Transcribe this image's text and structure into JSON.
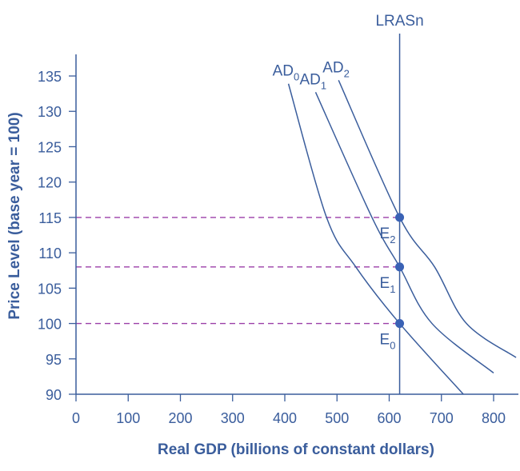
{
  "chart_data": {
    "type": "line",
    "title": "",
    "xlabel": "Real GDP (billions of constant dollars)",
    "ylabel": "Price Level (base year = 100)",
    "xlim": [
      0,
      850
    ],
    "ylim": [
      90,
      138
    ],
    "xticks": [
      0,
      100,
      200,
      300,
      400,
      500,
      600,
      700,
      800
    ],
    "yticks": [
      90,
      95,
      100,
      105,
      110,
      115,
      120,
      125,
      130,
      135
    ],
    "grid": false,
    "colors": {
      "axis": "#3a5d9c",
      "curve": "#3a5d9c",
      "dashed": "#9b3fa8",
      "point": "#3a62b5"
    },
    "vertical_line": {
      "name": "LRASn",
      "x": 620
    },
    "series": [
      {
        "name": "AD",
        "sub": "0",
        "points": [
          [
            407,
            133.9
          ],
          [
            480,
            115
          ],
          [
            536,
            108
          ],
          [
            620,
            100
          ],
          [
            742,
            90
          ]
        ]
      },
      {
        "name": "AD",
        "sub": "1",
        "points": [
          [
            459,
            132.7
          ],
          [
            567,
            115
          ],
          [
            620,
            108
          ],
          [
            682,
            100
          ],
          [
            800,
            93
          ]
        ]
      },
      {
        "name": "AD",
        "sub": "2",
        "points": [
          [
            503,
            134.4
          ],
          [
            620,
            115
          ],
          [
            687,
            108
          ],
          [
            748,
            100
          ],
          [
            843,
            95.2
          ]
        ]
      }
    ],
    "equilibria": [
      {
        "name": "E",
        "sub": "0",
        "x": 620,
        "y": 100
      },
      {
        "name": "E",
        "sub": "1",
        "x": 620,
        "y": 108
      },
      {
        "name": "E",
        "sub": "2",
        "x": 620,
        "y": 115
      }
    ]
  }
}
